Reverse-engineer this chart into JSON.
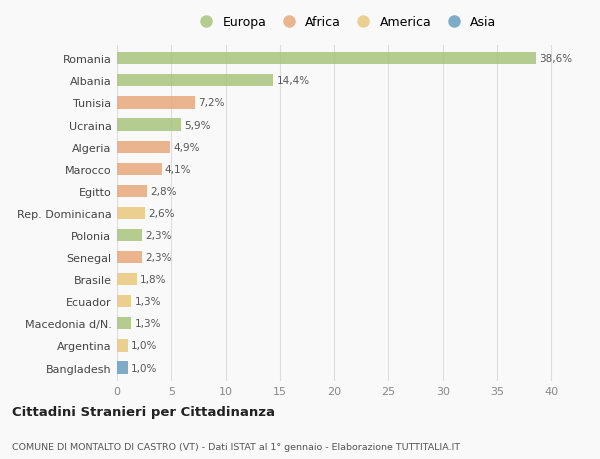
{
  "countries": [
    "Romania",
    "Albania",
    "Tunisia",
    "Ucraina",
    "Algeria",
    "Marocco",
    "Egitto",
    "Rep. Dominicana",
    "Polonia",
    "Senegal",
    "Brasile",
    "Ecuador",
    "Macedonia d/N.",
    "Argentina",
    "Bangladesh"
  ],
  "values": [
    38.6,
    14.4,
    7.2,
    5.9,
    4.9,
    4.1,
    2.8,
    2.6,
    2.3,
    2.3,
    1.8,
    1.3,
    1.3,
    1.0,
    1.0
  ],
  "labels": [
    "38,6%",
    "14,4%",
    "7,2%",
    "5,9%",
    "4,9%",
    "4,1%",
    "2,8%",
    "2,6%",
    "2,3%",
    "2,3%",
    "1,8%",
    "1,3%",
    "1,3%",
    "1,0%",
    "1,0%"
  ],
  "colors": [
    "#a8c47e",
    "#a8c47e",
    "#e8a87c",
    "#a8c47e",
    "#e8a87c",
    "#e8a87c",
    "#e8a87c",
    "#e8c87c",
    "#a8c47e",
    "#e8a87c",
    "#e8c87c",
    "#e8c87c",
    "#a8c47e",
    "#e8c87c",
    "#6a9ec0"
  ],
  "legend_labels": [
    "Europa",
    "Africa",
    "America",
    "Asia"
  ],
  "legend_colors": [
    "#a8c47e",
    "#e8a87c",
    "#e8c87c",
    "#6a9ec0"
  ],
  "title": "Cittadini Stranieri per Cittadinanza",
  "subtitle": "COMUNE DI MONTALTO DI CASTRO (VT) - Dati ISTAT al 1° gennaio - Elaborazione TUTTITALIA.IT",
  "xlim": [
    0,
    42
  ],
  "xticks": [
    0,
    5,
    10,
    15,
    20,
    25,
    30,
    35,
    40
  ],
  "background_color": "#f9f9f9",
  "grid_color": "#dddddd",
  "bar_height": 0.55
}
